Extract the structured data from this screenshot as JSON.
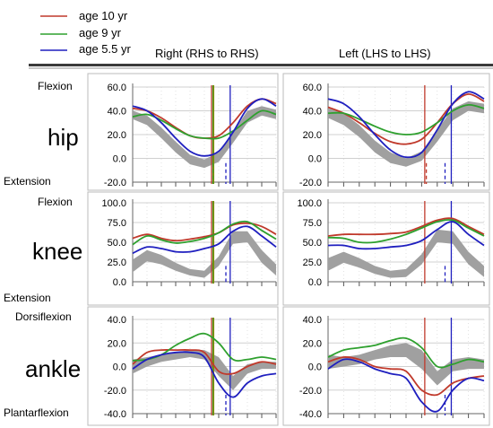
{
  "legend": [
    {
      "label": "age 10 yr",
      "color": "#c0392b"
    },
    {
      "label": "age 9 yr",
      "color": "#2ea02e"
    },
    {
      "label": "age 5.5 yr",
      "color": "#1f1fbf"
    }
  ],
  "column_titles": [
    "Right (RHS to RHS)",
    "Left (LHS to LHS)"
  ],
  "rows": [
    {
      "joint": "hip",
      "top_label": "Flexion",
      "bottom_label": "Extension"
    },
    {
      "joint": "knee",
      "top_label": "Flexion",
      "bottom_label": "Extension"
    },
    {
      "joint": "ankle",
      "top_label": "Dorsiflexion",
      "bottom_label": "Plantarflexion"
    }
  ],
  "colors": {
    "band": "#a0a0a0",
    "grid": "#d0d0d0",
    "frame": "#bbbbbb"
  },
  "chart_data": [
    {
      "type": "line",
      "row": "hip",
      "side": "Right (RHS to RHS)",
      "x": [
        0,
        10,
        20,
        30,
        40,
        50,
        60,
        70,
        80,
        90,
        100
      ],
      "xlim": [
        0,
        100
      ],
      "ylim": [
        -20,
        60
      ],
      "yticks": [
        "-20.0",
        "0.0",
        "20.0",
        "40.0",
        "60.0"
      ],
      "normal_band": {
        "x": [
          0,
          10,
          20,
          30,
          40,
          50,
          60,
          70,
          80,
          90,
          100
        ],
        "upper": [
          40,
          36,
          26,
          14,
          3,
          -1,
          5,
          22,
          40,
          44,
          41
        ],
        "lower": [
          33,
          28,
          17,
          5,
          -5,
          -8,
          -3,
          13,
          30,
          36,
          33
        ]
      },
      "series": [
        {
          "name": "age 10 yr",
          "color": "#c0392b",
          "values": [
            42,
            40,
            34,
            26,
            19,
            17,
            19,
            30,
            44,
            50,
            46
          ]
        },
        {
          "name": "age 9 yr",
          "color": "#2ea02e",
          "values": [
            35,
            37,
            32,
            25,
            19,
            17,
            17,
            23,
            32,
            40,
            37
          ]
        },
        {
          "name": "age 5.5 yr",
          "color": "#1f1fbf",
          "values": [
            44,
            40,
            30,
            17,
            6,
            2,
            6,
            22,
            42,
            50,
            44
          ]
        }
      ],
      "events": [
        {
          "x": 55,
          "color": "#c0392b",
          "style": "solid"
        },
        {
          "x": 56,
          "color": "#2ea02e",
          "style": "solid"
        },
        {
          "x": 56.5,
          "color": "#8a8a00",
          "style": "solid"
        },
        {
          "x": 68,
          "color": "#1f1fbf",
          "style": "solid"
        },
        {
          "x": 65,
          "color": "#1f1fbf",
          "style": "dashed"
        },
        {
          "x": 56,
          "color": "#2ea02e",
          "style": "dashed"
        }
      ]
    },
    {
      "type": "line",
      "row": "hip",
      "side": "Left (LHS to LHS)",
      "x": [
        0,
        10,
        20,
        30,
        40,
        50,
        60,
        70,
        80,
        90,
        100
      ],
      "xlim": [
        0,
        100
      ],
      "ylim": [
        -20,
        60
      ],
      "yticks": [
        "-20.0",
        "0.0",
        "20.0",
        "40.0",
        "60.0"
      ],
      "normal_band": {
        "x": [
          0,
          10,
          20,
          30,
          40,
          50,
          60,
          70,
          80,
          90,
          100
        ],
        "upper": [
          42,
          38,
          28,
          15,
          5,
          0,
          6,
          24,
          42,
          48,
          46
        ],
        "lower": [
          34,
          28,
          18,
          5,
          -4,
          -7,
          -2,
          14,
          32,
          40,
          38
        ]
      },
      "series": [
        {
          "name": "age 10 yr",
          "color": "#c0392b",
          "values": [
            43,
            38,
            30,
            21,
            14,
            12,
            16,
            30,
            46,
            54,
            48
          ]
        },
        {
          "name": "age 9 yr",
          "color": "#2ea02e",
          "values": [
            38,
            38,
            33,
            27,
            22,
            20,
            22,
            30,
            40,
            45,
            42
          ]
        },
        {
          "name": "age 5.5 yr",
          "color": "#1f1fbf",
          "values": [
            50,
            46,
            35,
            20,
            7,
            1,
            5,
            24,
            46,
            56,
            50
          ]
        }
      ],
      "events": [
        {
          "x": 62,
          "color": "#c0392b",
          "style": "solid"
        },
        {
          "x": 79,
          "color": "#1f1fbf",
          "style": "solid"
        },
        {
          "x": 75,
          "color": "#1f1fbf",
          "style": "dashed"
        },
        {
          "x": 63,
          "color": "#c0392b",
          "style": "dashed"
        }
      ]
    },
    {
      "type": "line",
      "row": "knee",
      "side": "Right (RHS to RHS)",
      "x": [
        0,
        10,
        20,
        30,
        40,
        50,
        60,
        70,
        80,
        90,
        100
      ],
      "xlim": [
        0,
        100
      ],
      "ylim": [
        0,
        100
      ],
      "yticks": [
        "0.0",
        "25.0",
        "50.0",
        "75.0",
        "100.0"
      ],
      "normal_band": {
        "x": [
          0,
          10,
          20,
          30,
          40,
          50,
          60,
          70,
          80,
          90,
          100
        ],
        "upper": [
          28,
          40,
          34,
          24,
          16,
          14,
          32,
          64,
          64,
          40,
          22
        ],
        "lower": [
          12,
          26,
          22,
          14,
          8,
          5,
          20,
          48,
          50,
          24,
          8
        ]
      },
      "series": [
        {
          "name": "age 10 yr",
          "color": "#c0392b",
          "values": [
            55,
            60,
            55,
            52,
            54,
            57,
            62,
            72,
            74,
            70,
            60
          ]
        },
        {
          "name": "age 9 yr",
          "color": "#2ea02e",
          "values": [
            47,
            58,
            53,
            49,
            51,
            55,
            62,
            73,
            76,
            65,
            54
          ]
        },
        {
          "name": "age 5.5 yr",
          "color": "#1f1fbf",
          "values": [
            36,
            44,
            42,
            38,
            38,
            42,
            48,
            64,
            70,
            58,
            44
          ]
        }
      ],
      "events": [
        {
          "x": 55,
          "color": "#c0392b",
          "style": "solid"
        },
        {
          "x": 56,
          "color": "#2ea02e",
          "style": "solid"
        },
        {
          "x": 56.5,
          "color": "#8a8a00",
          "style": "solid"
        },
        {
          "x": 68,
          "color": "#1f1fbf",
          "style": "solid"
        },
        {
          "x": 65,
          "color": "#1f1fbf",
          "style": "dashed"
        }
      ]
    },
    {
      "type": "line",
      "row": "knee",
      "side": "Left (LHS to LHS)",
      "x": [
        0,
        10,
        20,
        30,
        40,
        50,
        60,
        70,
        80,
        90,
        100
      ],
      "xlim": [
        0,
        100
      ],
      "ylim": [
        0,
        100
      ],
      "yticks": [
        "0.0",
        "25.0",
        "50.0",
        "75.0",
        "100.0"
      ],
      "normal_band": {
        "x": [
          0,
          10,
          20,
          30,
          40,
          50,
          60,
          70,
          80,
          90,
          100
        ],
        "upper": [
          30,
          38,
          30,
          20,
          14,
          16,
          35,
          66,
          64,
          38,
          20
        ],
        "lower": [
          14,
          24,
          18,
          10,
          5,
          6,
          22,
          50,
          48,
          22,
          6
        ]
      },
      "series": [
        {
          "name": "age 10 yr",
          "color": "#c0392b",
          "values": [
            58,
            60,
            60,
            60,
            61,
            63,
            70,
            78,
            80,
            70,
            60
          ]
        },
        {
          "name": "age 9 yr",
          "color": "#2ea02e",
          "values": [
            56,
            55,
            50,
            50,
            54,
            60,
            68,
            76,
            78,
            68,
            58
          ]
        },
        {
          "name": "age 5.5 yr",
          "color": "#1f1fbf",
          "values": [
            46,
            46,
            42,
            42,
            44,
            46,
            52,
            66,
            76,
            60,
            46
          ]
        }
      ],
      "events": [
        {
          "x": 62,
          "color": "#c0392b",
          "style": "solid"
        },
        {
          "x": 79,
          "color": "#1f1fbf",
          "style": "solid"
        },
        {
          "x": 75,
          "color": "#1f1fbf",
          "style": "dashed"
        }
      ]
    },
    {
      "type": "line",
      "row": "ankle",
      "side": "Right (RHS to RHS)",
      "x": [
        0,
        10,
        20,
        30,
        40,
        50,
        60,
        70,
        80,
        90,
        100
      ],
      "xlim": [
        0,
        100
      ],
      "ylim": [
        -40,
        40
      ],
      "yticks": [
        "-40.0",
        "-20.0",
        "0.0",
        "20.0",
        "40.0"
      ],
      "normal_band": {
        "x": [
          0,
          10,
          20,
          30,
          40,
          50,
          60,
          70,
          80,
          90,
          100
        ],
        "upper": [
          6,
          8,
          10,
          12,
          14,
          14,
          8,
          -8,
          2,
          4,
          4
        ],
        "lower": [
          -6,
          0,
          4,
          6,
          8,
          6,
          -8,
          -20,
          -6,
          -2,
          -2
        ]
      },
      "series": [
        {
          "name": "age 10 yr",
          "color": "#c0392b",
          "values": [
            2,
            12,
            14,
            14,
            14,
            12,
            -4,
            -6,
            0,
            4,
            2
          ]
        },
        {
          "name": "age 9 yr",
          "color": "#2ea02e",
          "values": [
            5,
            6,
            10,
            18,
            24,
            28,
            20,
            6,
            6,
            8,
            6
          ]
        },
        {
          "name": "age 5.5 yr",
          "color": "#1f1fbf",
          "values": [
            -2,
            6,
            10,
            12,
            12,
            8,
            -14,
            -26,
            -14,
            -8,
            -6
          ]
        }
      ],
      "events": [
        {
          "x": 55,
          "color": "#c0392b",
          "style": "solid"
        },
        {
          "x": 56,
          "color": "#2ea02e",
          "style": "solid"
        },
        {
          "x": 56.5,
          "color": "#8a8a00",
          "style": "solid"
        },
        {
          "x": 68,
          "color": "#1f1fbf",
          "style": "solid"
        },
        {
          "x": 65,
          "color": "#1f1fbf",
          "style": "dashed"
        }
      ]
    },
    {
      "type": "line",
      "row": "ankle",
      "side": "Left (LHS to LHS)",
      "x": [
        0,
        10,
        20,
        30,
        40,
        50,
        60,
        70,
        80,
        90,
        100
      ],
      "xlim": [
        0,
        100
      ],
      "ylim": [
        -40,
        40
      ],
      "yticks": [
        "-40.0",
        "-20.0",
        "0.0",
        "20.0",
        "40.0"
      ],
      "normal_band": {
        "x": [
          0,
          10,
          20,
          30,
          40,
          50,
          60,
          70,
          80,
          90,
          100
        ],
        "upper": [
          10,
          8,
          10,
          14,
          18,
          20,
          14,
          -4,
          6,
          8,
          6
        ],
        "lower": [
          -2,
          0,
          2,
          6,
          8,
          8,
          -2,
          -16,
          -4,
          -2,
          -2
        ]
      },
      "series": [
        {
          "name": "age 10 yr",
          "color": "#c0392b",
          "values": [
            4,
            8,
            6,
            0,
            -2,
            -4,
            -20,
            -24,
            -14,
            -10,
            -8
          ]
        },
        {
          "name": "age 9 yr",
          "color": "#2ea02e",
          "values": [
            8,
            14,
            16,
            18,
            22,
            24,
            16,
            0,
            2,
            6,
            4
          ]
        },
        {
          "name": "age 5.5 yr",
          "color": "#1f1fbf",
          "values": [
            -2,
            6,
            4,
            -2,
            -6,
            -10,
            -30,
            -38,
            -20,
            -10,
            -12
          ]
        }
      ],
      "events": [
        {
          "x": 62,
          "color": "#c0392b",
          "style": "solid"
        },
        {
          "x": 79,
          "color": "#1f1fbf",
          "style": "solid"
        },
        {
          "x": 75,
          "color": "#1f1fbf",
          "style": "dashed"
        }
      ]
    }
  ]
}
